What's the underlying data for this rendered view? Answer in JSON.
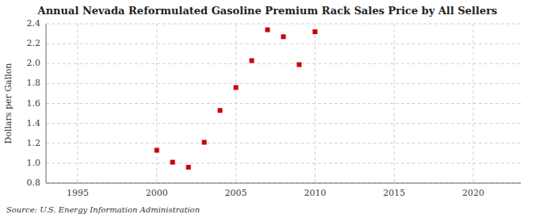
{
  "chart_data": {
    "type": "scatter",
    "title": "Annual Nevada Reformulated Gasoline Premium Rack Sales Price by All Sellers",
    "y_label": "Dollars per Gallon",
    "source": "Source: U.S. Energy Information Administration",
    "x": [
      2000,
      2001,
      2002,
      2003,
      2004,
      2005,
      2006,
      2007,
      2008,
      2009,
      2010
    ],
    "values": [
      1.13,
      1.01,
      0.96,
      1.21,
      1.53,
      1.76,
      2.03,
      2.34,
      2.27,
      1.99,
      2.32
    ],
    "color": "#cc0000",
    "marker": "square",
    "xlim": [
      1993,
      2023
    ],
    "ylim": [
      0.8,
      2.4
    ],
    "xticks": [
      1995,
      2000,
      2005,
      2010,
      2015,
      2020
    ],
    "yticks": [
      0.8,
      {
        "value": 1.0,
        "label": "1.0"
      },
      1.2,
      1.4,
      1.6,
      1.8,
      {
        "value": 2.0,
        "label": "2.0"
      },
      2.2,
      2.4
    ],
    "grid": true
  }
}
